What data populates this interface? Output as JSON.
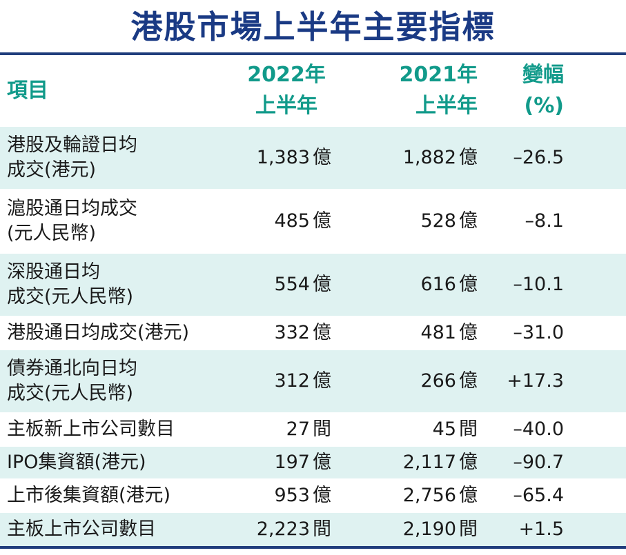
{
  "title": "港股市場上半年主要指標",
  "header": {
    "item": "項目",
    "y2022_line1": "2022年",
    "y2022_line2": "上半年",
    "y2021_line1": "2021年",
    "y2021_line2": "上半年",
    "change_line1": "變幅",
    "change_line2": "(%)"
  },
  "rows": [
    {
      "item_l1": "港股及輪證日均",
      "item_l2": "成交(港元)",
      "y2022": "1,383",
      "y2022_unit": "億",
      "y2021": "1,882",
      "y2021_unit": "億",
      "change": "–26.5"
    },
    {
      "item_l1": "滬股通日均成交",
      "item_l2": "(元人民幣)",
      "y2022": "485",
      "y2022_unit": "億",
      "y2021": "528",
      "y2021_unit": "億",
      "change": "–8.1"
    },
    {
      "item_l1": "深股通日均",
      "item_l2": "成交(元人民幣)",
      "y2022": "554",
      "y2022_unit": "億",
      "y2021": "616",
      "y2021_unit": "億",
      "change": "–10.1"
    },
    {
      "item_l1": "港股通日均成交(港元)",
      "y2022": "332",
      "y2022_unit": "億",
      "y2021": "481",
      "y2021_unit": "億",
      "change": "–31.0"
    },
    {
      "item_l1": "債券通北向日均",
      "item_l2": "成交(元人民幣)",
      "y2022": "312",
      "y2022_unit": "億",
      "y2021": "266",
      "y2021_unit": "億",
      "change": "+17.3"
    },
    {
      "item_l1": "主板新上市公司數目",
      "y2022": "27",
      "y2022_unit": "間",
      "y2021": "45",
      "y2021_unit": "間",
      "change": "–40.0"
    },
    {
      "item_l1": "IPO集資額(港元)",
      "y2022": "197",
      "y2022_unit": "億",
      "y2021": "2,117",
      "y2021_unit": "億",
      "change": "–90.7"
    },
    {
      "item_l1": "上市後集資額(港元)",
      "y2022": "953",
      "y2022_unit": "億",
      "y2021": "2,756",
      "y2021_unit": "億",
      "change": "–65.4"
    },
    {
      "item_l1": "主板上市公司數目",
      "y2022": "2,223",
      "y2022_unit": "間",
      "y2021": "2,190",
      "y2021_unit": "間",
      "change": "+1.5"
    }
  ]
}
